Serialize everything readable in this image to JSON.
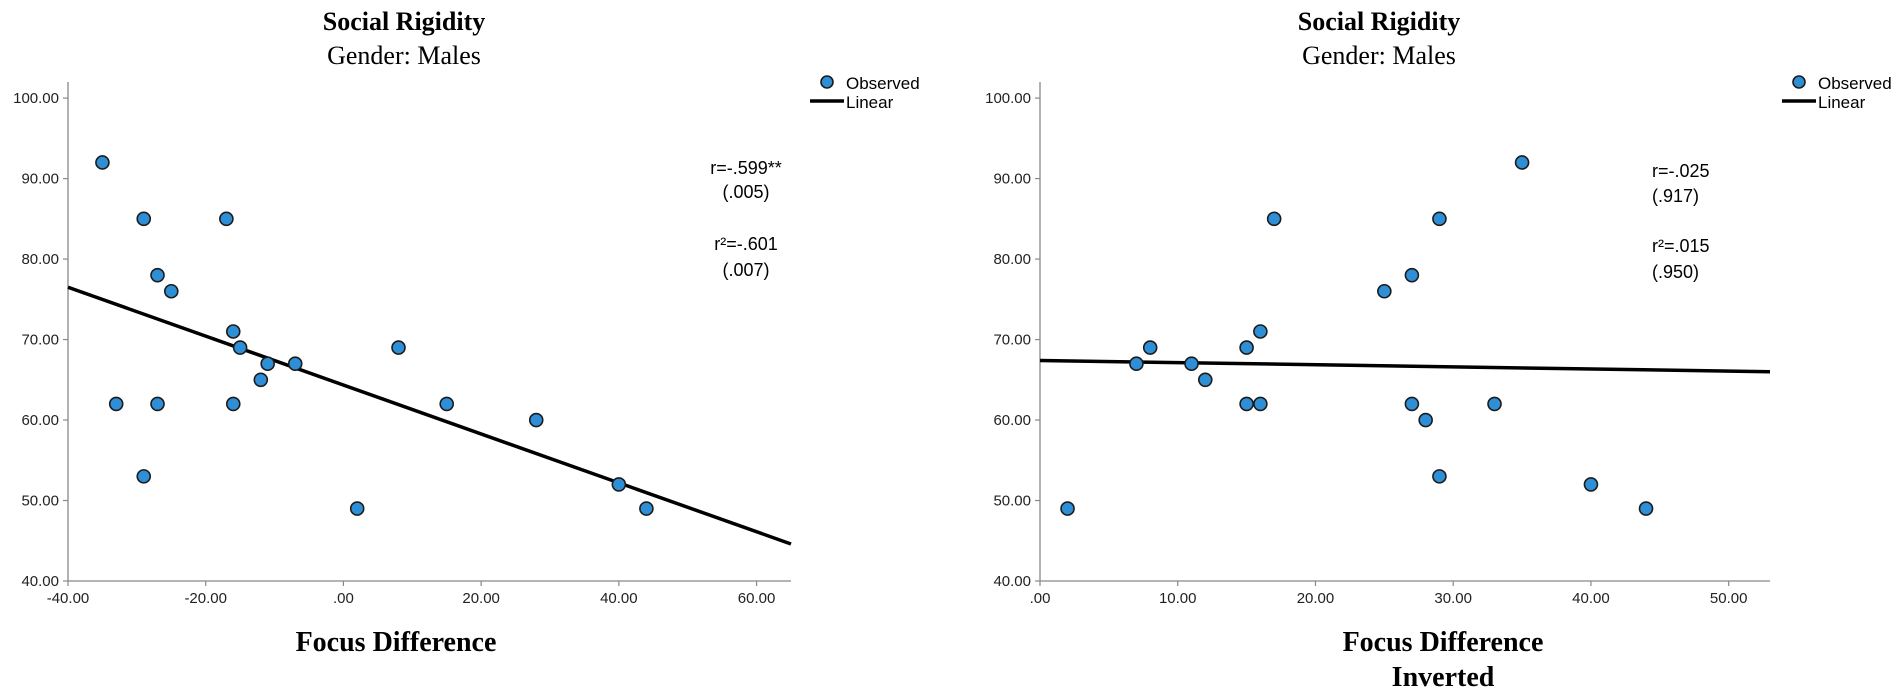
{
  "colors": {
    "marker": "#2e8fd6",
    "line": "#000000",
    "axis": "#888888"
  },
  "chart_data": [
    {
      "type": "scatter",
      "title": "Social Rigidity",
      "subtitle": "Gender: Males",
      "xlabel": [
        "Focus Difference"
      ],
      "ylabel": "",
      "xlim": [
        -40,
        65
      ],
      "ylim": [
        40,
        102
      ],
      "xticks": [
        -40,
        -20,
        0,
        20,
        40,
        60
      ],
      "xtick_labels": [
        "-40.00",
        "-20.00",
        ".00",
        "20.00",
        "40.00",
        "60.00"
      ],
      "yticks": [
        40,
        50,
        60,
        70,
        80,
        90,
        100
      ],
      "ytick_labels": [
        "40.00",
        "50.00",
        "60.00",
        "70.00",
        "80.00",
        "90.00",
        "100.00"
      ],
      "legend": {
        "position": "top-right",
        "observed": "Observed",
        "linear": "Linear"
      },
      "annotations": [
        "r=-.599**",
        "(.005)",
        "r²=-.601",
        "(.007)"
      ],
      "points": [
        {
          "x": -35,
          "y": 92
        },
        {
          "x": -33,
          "y": 62
        },
        {
          "x": -29,
          "y": 85
        },
        {
          "x": -29,
          "y": 53
        },
        {
          "x": -27,
          "y": 78
        },
        {
          "x": -27,
          "y": 62
        },
        {
          "x": -25,
          "y": 76
        },
        {
          "x": -17,
          "y": 85
        },
        {
          "x": -16,
          "y": 71
        },
        {
          "x": -16,
          "y": 62
        },
        {
          "x": -15,
          "y": 69
        },
        {
          "x": -12,
          "y": 65
        },
        {
          "x": -11,
          "y": 67
        },
        {
          "x": -7,
          "y": 67
        },
        {
          "x": 2,
          "y": 49
        },
        {
          "x": 8,
          "y": 69
        },
        {
          "x": 15,
          "y": 62
        },
        {
          "x": 28,
          "y": 60
        },
        {
          "x": 40,
          "y": 52
        },
        {
          "x": 44,
          "y": 49
        }
      ],
      "fit": {
        "x": [
          -40,
          65
        ],
        "y": [
          76.5,
          44.6
        ]
      }
    },
    {
      "type": "scatter",
      "title": "Social Rigidity",
      "subtitle": "Gender: Males",
      "xlabel": [
        "Focus Difference",
        "Inverted"
      ],
      "ylabel": "",
      "xlim": [
        0,
        53
      ],
      "ylim": [
        40,
        102
      ],
      "xticks": [
        0,
        10,
        20,
        30,
        40,
        50
      ],
      "xtick_labels": [
        ".00",
        "10.00",
        "20.00",
        "30.00",
        "40.00",
        "50.00"
      ],
      "yticks": [
        40,
        50,
        60,
        70,
        80,
        90,
        100
      ],
      "ytick_labels": [
        "40.00",
        "50.00",
        "60.00",
        "70.00",
        "80.00",
        "90.00",
        "100.00"
      ],
      "legend": {
        "position": "top-right",
        "observed": "Observed",
        "linear": "Linear"
      },
      "annotations": [
        "r=-.025",
        "(.917)",
        "r²=.015",
        "(.950)"
      ],
      "points": [
        {
          "x": 2,
          "y": 49
        },
        {
          "x": 7,
          "y": 67
        },
        {
          "x": 8,
          "y": 69
        },
        {
          "x": 11,
          "y": 67
        },
        {
          "x": 12,
          "y": 65
        },
        {
          "x": 15,
          "y": 69
        },
        {
          "x": 15,
          "y": 62
        },
        {
          "x": 16,
          "y": 71
        },
        {
          "x": 16,
          "y": 62
        },
        {
          "x": 17,
          "y": 85
        },
        {
          "x": 25,
          "y": 76
        },
        {
          "x": 27,
          "y": 78
        },
        {
          "x": 27,
          "y": 62
        },
        {
          "x": 28,
          "y": 60
        },
        {
          "x": 29,
          "y": 85
        },
        {
          "x": 29,
          "y": 53
        },
        {
          "x": 33,
          "y": 62
        },
        {
          "x": 35,
          "y": 92
        },
        {
          "x": 40,
          "y": 52
        },
        {
          "x": 44,
          "y": 49
        }
      ],
      "fit": {
        "x": [
          0,
          53
        ],
        "y": [
          67.4,
          66.0
        ]
      }
    }
  ]
}
